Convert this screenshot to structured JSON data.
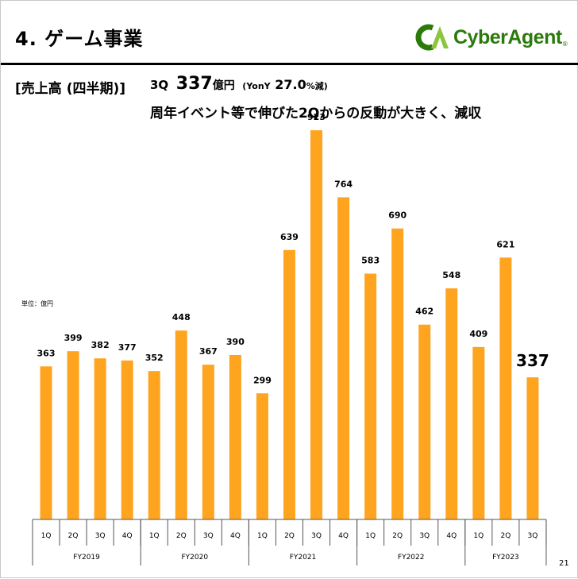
{
  "header": {
    "title": "4. ゲーム事業",
    "logo_text": "CyberAgent",
    "logo_tm": "®"
  },
  "subheading": {
    "label": "[売上高 (四半期)]",
    "quarter": "3Q",
    "value": "337",
    "value_unit": "億円",
    "yoy_prefix": "(YonY",
    "yoy_value": "27.0",
    "yoy_suffix": "%減)",
    "comment": "周年イベント等で伸びた2Qからの反動が大きく、減収"
  },
  "unit_note": "単位：億円",
  "page_number": "21",
  "colors": {
    "bar": "#FFA41E",
    "logo_green": "#2b7a0b",
    "logo_light": "#8cc63f"
  },
  "chart_data": {
    "type": "bar",
    "title": "",
    "xlabel": "",
    "ylabel": "",
    "ylim": [
      0,
      1000
    ],
    "grid": false,
    "legend": "none",
    "categories": [
      "1Q",
      "2Q",
      "3Q",
      "4Q",
      "1Q",
      "2Q",
      "3Q",
      "4Q",
      "1Q",
      "2Q",
      "3Q",
      "4Q",
      "1Q",
      "2Q",
      "3Q",
      "4Q",
      "1Q",
      "2Q",
      "3Q"
    ],
    "values": [
      363,
      399,
      382,
      377,
      352,
      448,
      367,
      390,
      299,
      639,
      923,
      764,
      583,
      690,
      462,
      548,
      409,
      621,
      337
    ],
    "groups": [
      {
        "label": "FY2019",
        "count": 4
      },
      {
        "label": "FY2020",
        "count": 4
      },
      {
        "label": "FY2021",
        "count": 4
      },
      {
        "label": "FY2022",
        "count": 4
      },
      {
        "label": "FY2023",
        "count": 3
      }
    ],
    "highlight_index": 18
  }
}
